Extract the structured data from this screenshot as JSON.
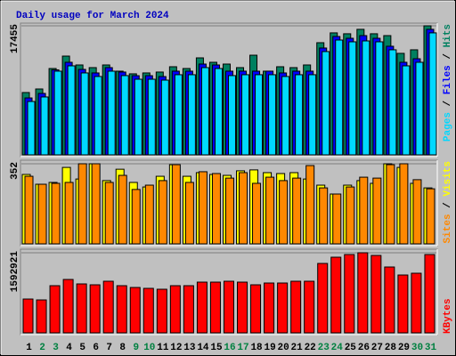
{
  "chart_data": [
    {
      "type": "bar",
      "title": "Daily usage for March 2024",
      "legend": "top",
      "legend_separator": " / ",
      "ylim": [
        0,
        17455
      ],
      "yticks": [
        17455
      ],
      "series": [
        {
          "name": "Hits",
          "color": "#008060",
          "values": [
            8430,
            8910,
            11680,
            13360,
            12160,
            11800,
            12160,
            11320,
            10960,
            11080,
            11200,
            11920,
            11680,
            13120,
            12520,
            12280,
            11800,
            13480,
            11320,
            11920,
            11800,
            12160,
            15170,
            16500,
            16380,
            16980,
            16380,
            16130,
            13730,
            14210,
            17455
          ]
        },
        {
          "name": "Files",
          "color": "#0000ff",
          "values": [
            7700,
            8310,
            11500,
            12520,
            11560,
            11080,
            11800,
            11200,
            10710,
            10710,
            10590,
            11320,
            11320,
            12280,
            12160,
            11320,
            11320,
            11320,
            11320,
            11080,
            11320,
            11320,
            14450,
            16010,
            15770,
            16130,
            15770,
            14690,
            12520,
            13000,
            16980
          ]
        },
        {
          "name": "Pages",
          "color": "#00d8ff",
          "values": [
            7220,
            7830,
            11320,
            12040,
            11080,
            10600,
            11320,
            10720,
            10230,
            10230,
            10110,
            10840,
            10840,
            11800,
            11680,
            10720,
            10840,
            10840,
            10840,
            10600,
            10840,
            10840,
            13970,
            15530,
            15290,
            15410,
            15290,
            14210,
            12040,
            12520,
            16500
          ]
        }
      ]
    },
    {
      "type": "bar",
      "legend": "top",
      "legend_separator": " / ",
      "ylim": [
        0,
        352
      ],
      "yticks": [
        352
      ],
      "series": [
        {
          "name": "Visits",
          "color": "#ffff00",
          "values": [
            305,
            262,
            270,
            336,
            285,
            352,
            278,
            328,
            270,
            250,
            297,
            348,
            297,
            313,
            305,
            301,
            321,
            325,
            313,
            309,
            313,
            285,
            258,
            219,
            258,
            278,
            266,
            352,
            336,
            266,
            246
          ]
        },
        {
          "name": "Sites",
          "color": "#ff8800",
          "values": [
            297,
            262,
            266,
            270,
            352,
            352,
            270,
            301,
            239,
            258,
            278,
            348,
            270,
            317,
            309,
            289,
            313,
            266,
            293,
            278,
            289,
            344,
            246,
            219,
            250,
            293,
            289,
            348,
            352,
            282,
            242
          ]
        }
      ]
    },
    {
      "type": "bar",
      "legend": "bottom",
      "ylim": [
        0,
        1592921
      ],
      "yticks": [
        1592921
      ],
      "categories": [
        "1",
        "2",
        "3",
        "4",
        "5",
        "6",
        "7",
        "8",
        "9",
        "10",
        "11",
        "12",
        "13",
        "14",
        "15",
        "16",
        "17",
        "18",
        "19",
        "20",
        "21",
        "22",
        "23",
        "24",
        "25",
        "26",
        "27",
        "28",
        "29",
        "30",
        "31"
      ],
      "category_colors": [
        "#000000",
        "#008040",
        "#008040",
        "#000000",
        "#000000",
        "#000000",
        "#000000",
        "#000000",
        "#008040",
        "#008040",
        "#000000",
        "#000000",
        "#000000",
        "#000000",
        "#000000",
        "#008040",
        "#008040",
        "#000000",
        "#000000",
        "#000000",
        "#000000",
        "#000000",
        "#008040",
        "#008040",
        "#000000",
        "#000000",
        "#000000",
        "#000000",
        "#000000",
        "#008040",
        "#008040"
      ],
      "series": [
        {
          "name": "KBytes",
          "color": "#ff0000",
          "values": [
            672600,
            654900,
            938000,
            1061900,
            973400,
            955700,
            1026500,
            938000,
            902600,
            885000,
            867300,
            938000,
            938000,
            1008800,
            1008800,
            1026500,
            1008800,
            955700,
            991100,
            991100,
            1026500,
            1026500,
            1380500,
            1504400,
            1557500,
            1592921,
            1539800,
            1309700,
            1150400,
            1185800,
            1557500
          ]
        }
      ]
    }
  ]
}
